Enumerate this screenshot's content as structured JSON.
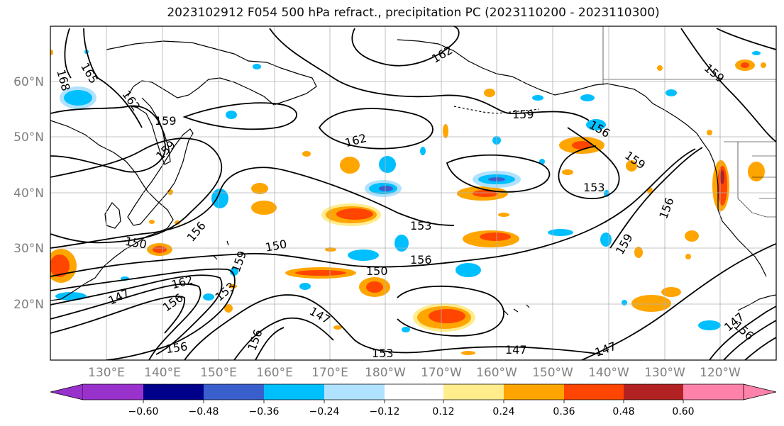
{
  "title": "2023102912 F054 500 hPa refract., precipitation PC (2023110200 - 2023110300)",
  "lat_labels": [
    "60°N",
    "50°N",
    "40°N",
    "30°N",
    "20°N"
  ],
  "lon_labels": [
    "130°E",
    "140°E",
    "150°E",
    "160°E",
    "170°E",
    "180°W",
    "170°W",
    "160°W",
    "150°W",
    "140°W",
    "130°W",
    "120°W"
  ],
  "contour_labels": [
    "168",
    "165",
    "162",
    "159",
    "159",
    "162",
    "162",
    "159",
    "156",
    "159",
    "153",
    "156",
    "153",
    "150",
    "150",
    "156",
    "159",
    "150",
    "147",
    "162",
    "156",
    "153",
    "159",
    "147",
    "156",
    "153",
    "147",
    "147",
    "156",
    "159",
    "156",
    "147",
    "156"
  ],
  "colorbar": {
    "ticks": [
      "−0.60",
      "−0.48",
      "−0.36",
      "−0.24",
      "−0.12",
      "0.12",
      "0.24",
      "0.36",
      "0.48",
      "0.60"
    ],
    "colors": [
      "#9932cc",
      "#00008b",
      "#3a5fcd",
      "#00bfff",
      "#b0e2ff",
      "#ffffff",
      "#ffec8b",
      "#ffa500",
      "#ff4500",
      "#b22222",
      "#ff82ab"
    ]
  },
  "colors": {
    "contour": "#000000",
    "coast": "#000000",
    "grid": "#b0b0b0"
  }
}
